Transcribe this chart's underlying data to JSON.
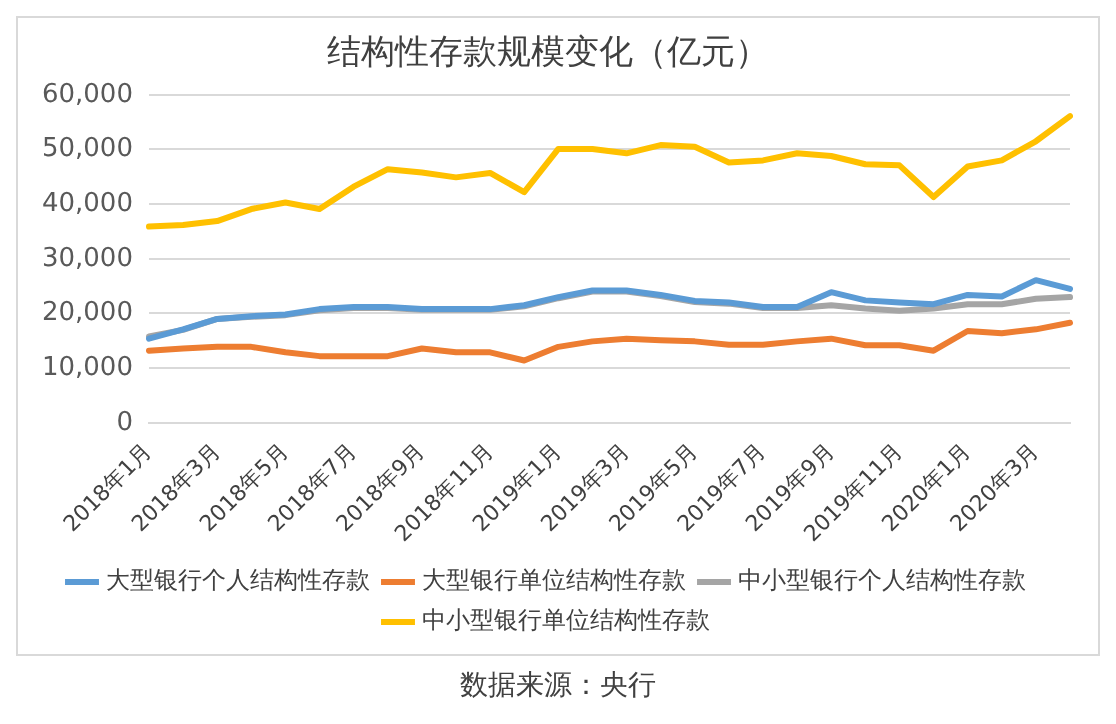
{
  "chart_data": {
    "type": "line",
    "title": "结构性存款规模变化（亿元）",
    "categories": [
      "2018年1月",
      null,
      "2018年3月",
      null,
      "2018年5月",
      null,
      "2018年7月",
      null,
      "2018年9月",
      null,
      "2018年11月",
      null,
      "2019年1月",
      null,
      "2019年3月",
      null,
      "2019年5月",
      null,
      "2019年7月",
      null,
      "2019年9月",
      null,
      "2019年11月",
      null,
      "2020年1月",
      null,
      "2020年3月",
      null
    ],
    "series": [
      {
        "name": "大型银行个人结构性存款",
        "color": "#5b9bd5",
        "values": [
          15400,
          17100,
          19000,
          19500,
          19800,
          20800,
          21200,
          21200,
          20800,
          20800,
          20800,
          21500,
          23000,
          24200,
          24200,
          23400,
          22300,
          22000,
          21200,
          21200,
          23900,
          22400,
          22000,
          21700,
          23400,
          23100,
          26100,
          24500
        ]
      },
      {
        "name": "大型银行单位结构性存款",
        "color": "#ed7d31",
        "values": [
          13200,
          13600,
          13900,
          13900,
          12900,
          12200,
          12200,
          12200,
          13600,
          12900,
          12900,
          11400,
          13900,
          14900,
          15400,
          15100,
          14900,
          14300,
          14300,
          14900,
          15400,
          14200,
          14200,
          13200,
          16800,
          16400,
          17100,
          18300
        ]
      },
      {
        "name": "中小型银行个人结构性存款",
        "color": "#a5a5a5",
        "values": [
          15800,
          17000,
          19000,
          19400,
          19700,
          20600,
          21000,
          21000,
          20700,
          20700,
          20700,
          21300,
          22800,
          24000,
          24000,
          23200,
          22100,
          21800,
          21000,
          21000,
          21500,
          20900,
          20500,
          20900,
          21700,
          21700,
          22700,
          23000
        ]
      },
      {
        "name": "中小型银行单位结构性存款",
        "color": "#ffc000",
        "values": [
          35900,
          36200,
          36900,
          39100,
          40300,
          39100,
          43200,
          46400,
          45800,
          44900,
          45700,
          42200,
          50100,
          50100,
          49300,
          50800,
          50500,
          47600,
          48000,
          49300,
          48800,
          47300,
          47100,
          41300,
          46900,
          48000,
          51500,
          56100
        ]
      }
    ],
    "ylim": [
      0,
      60000
    ],
    "yticks": [
      0,
      {
        "value": 10000,
        "label": "10,000"
      },
      {
        "value": 20000,
        "label": "20,000"
      },
      {
        "value": 30000,
        "label": "30,000"
      },
      {
        "value": 40000,
        "label": "40,000"
      },
      {
        "value": 50000,
        "label": "50,000"
      },
      {
        "value": 60000,
        "label": "60,000"
      }
    ],
    "grid": "y",
    "legend": "bottom",
    "marker": "none",
    "line_style": "solid",
    "annotations": [
      "数据来源：央行"
    ]
  }
}
